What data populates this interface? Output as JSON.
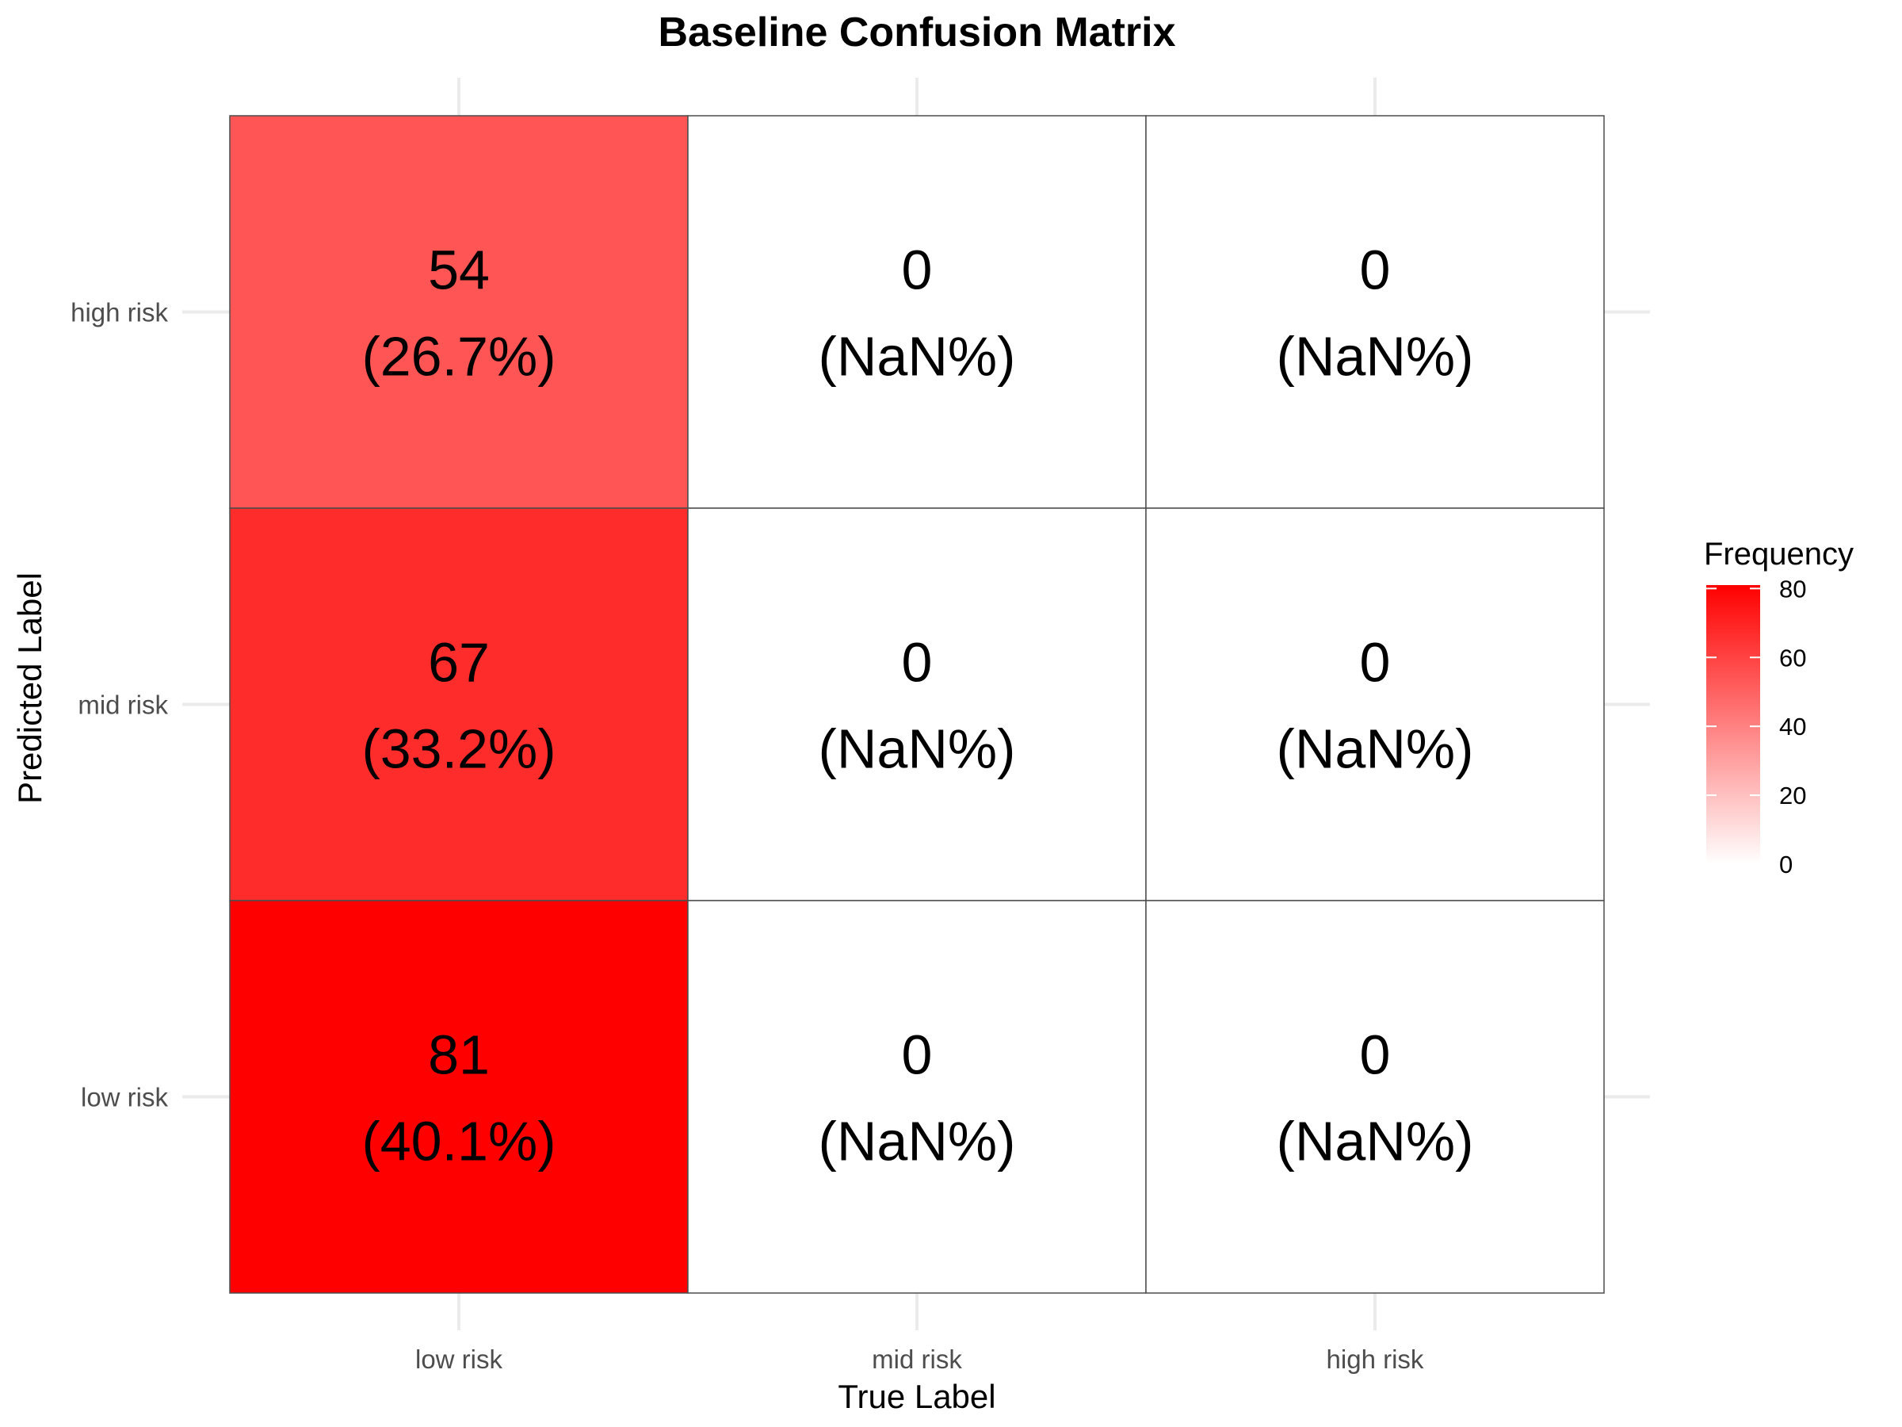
{
  "chart_data": {
    "type": "heatmap",
    "title": "Baseline Confusion Matrix",
    "xlabel": "True Label",
    "ylabel": "Predicted Label",
    "x_categories": [
      "low risk",
      "mid risk",
      "high risk"
    ],
    "y_categories": [
      "low risk",
      "mid risk",
      "high risk"
    ],
    "cells": [
      {
        "x": "low risk",
        "y": "high risk",
        "value": 54,
        "label": "(26.7%)"
      },
      {
        "x": "mid risk",
        "y": "high risk",
        "value": 0,
        "label": "(NaN%)"
      },
      {
        "x": "high risk",
        "y": "high risk",
        "value": 0,
        "label": "(NaN%)"
      },
      {
        "x": "low risk",
        "y": "mid risk",
        "value": 67,
        "label": "(33.2%)"
      },
      {
        "x": "mid risk",
        "y": "mid risk",
        "value": 0,
        "label": "(NaN%)"
      },
      {
        "x": "high risk",
        "y": "mid risk",
        "value": 0,
        "label": "(NaN%)"
      },
      {
        "x": "low risk",
        "y": "low risk",
        "value": 81,
        "label": "(40.1%)"
      },
      {
        "x": "mid risk",
        "y": "low risk",
        "value": 0,
        "label": "(NaN%)"
      },
      {
        "x": "high risk",
        "y": "low risk",
        "value": 0,
        "label": "(NaN%)"
      }
    ],
    "legend": {
      "title": "Frequency",
      "ticks": [
        0,
        20,
        40,
        60,
        80
      ],
      "range": [
        0,
        81
      ],
      "placement": "right"
    },
    "color_low": "#ffffff",
    "color_high": "#ff0000",
    "grid": true
  }
}
